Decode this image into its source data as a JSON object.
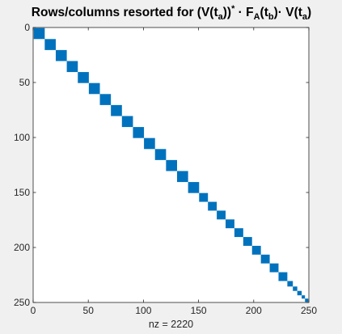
{
  "figure": {
    "background": "#f0f0f0",
    "axes_background": "#ffffff",
    "axes_color": "#262626",
    "marker_color": "#0072bd"
  },
  "chart_data": {
    "type": "spy",
    "title": {
      "prefix": "Rows/columns resorted for (V(t",
      "sub_a1": "a",
      "close1": "))",
      "sup_star": "*",
      "mid1": " · F",
      "sub_A": "A",
      "mid2": "(t",
      "sub_b": "b",
      "mid3": ")· V(t",
      "sub_a2": "a",
      "suffix": ")"
    },
    "xlabel": "nz = 2220",
    "ylabel": "",
    "xlim": [
      0,
      250
    ],
    "ylim": [
      0,
      250
    ],
    "y_reversed": true,
    "xticks": [
      0,
      50,
      100,
      150,
      200,
      250
    ],
    "yticks": [
      0,
      50,
      100,
      150,
      200,
      250
    ],
    "grid": false,
    "blocks": [
      {
        "start": 1,
        "size": 10
      },
      {
        "start": 11,
        "size": 10
      },
      {
        "start": 21,
        "size": 10
      },
      {
        "start": 31,
        "size": 10
      },
      {
        "start": 41,
        "size": 10
      },
      {
        "start": 51,
        "size": 10
      },
      {
        "start": 61,
        "size": 10
      },
      {
        "start": 71,
        "size": 10
      },
      {
        "start": 81,
        "size": 10
      },
      {
        "start": 91,
        "size": 10
      },
      {
        "start": 101,
        "size": 10
      },
      {
        "start": 111,
        "size": 10
      },
      {
        "start": 121,
        "size": 10
      },
      {
        "start": 131,
        "size": 10
      },
      {
        "start": 141,
        "size": 10
      },
      {
        "start": 151,
        "size": 8
      },
      {
        "start": 159,
        "size": 8
      },
      {
        "start": 167,
        "size": 8
      },
      {
        "start": 175,
        "size": 8
      },
      {
        "start": 183,
        "size": 8
      },
      {
        "start": 191,
        "size": 8
      },
      {
        "start": 199,
        "size": 8
      },
      {
        "start": 207,
        "size": 8
      },
      {
        "start": 215,
        "size": 8
      },
      {
        "start": 223,
        "size": 8
      },
      {
        "start": 231,
        "size": 5
      },
      {
        "start": 236,
        "size": 4
      },
      {
        "start": 240,
        "size": 4
      },
      {
        "start": 244,
        "size": 3
      },
      {
        "start": 247,
        "size": 3
      }
    ]
  }
}
